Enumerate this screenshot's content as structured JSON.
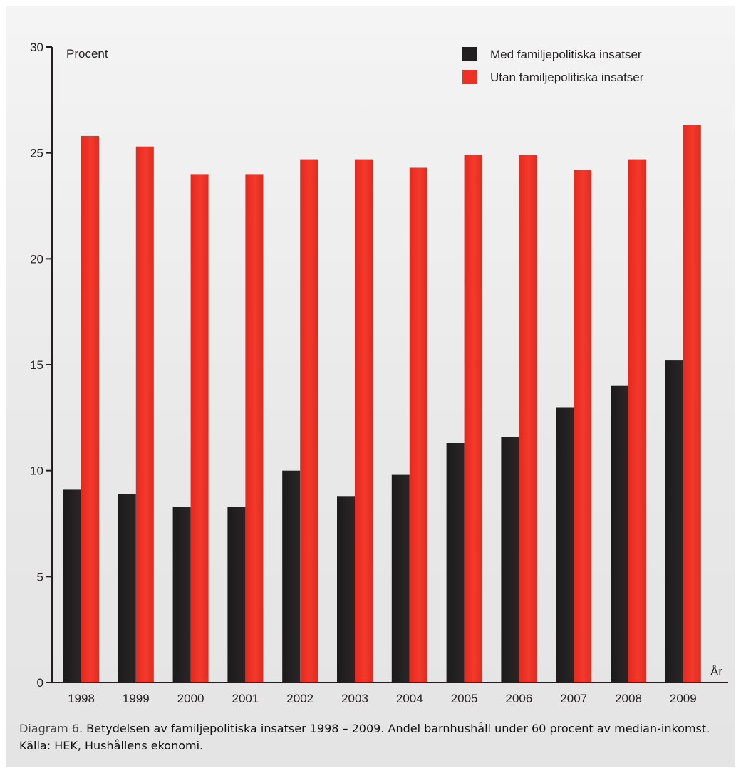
{
  "chart_data": {
    "type": "bar",
    "ylabel": "Procent",
    "xlabel": "År",
    "ylim": [
      0,
      30
    ],
    "yticks": [
      0,
      5,
      10,
      15,
      20,
      25,
      30
    ],
    "grid": false,
    "legend_position": "top-right",
    "categories": [
      "1998",
      "1999",
      "2000",
      "2001",
      "2002",
      "2003",
      "2004",
      "2005",
      "2006",
      "2007",
      "2008",
      "2009"
    ],
    "series": [
      {
        "name": "Med familjepolitiska insatser",
        "color": "#231f20",
        "values": [
          9.1,
          8.9,
          8.3,
          8.3,
          10.0,
          8.8,
          9.8,
          11.3,
          11.6,
          13.0,
          14.0,
          15.2
        ]
      },
      {
        "name": "Utan familjepolitiska insatser",
        "color": "#ee3124",
        "values": [
          25.8,
          25.3,
          24.0,
          24.0,
          24.7,
          24.7,
          24.3,
          24.9,
          24.9,
          24.2,
          24.7,
          26.3
        ]
      }
    ]
  },
  "caption": {
    "lead": "Diagram 6.",
    "text": "Betydelsen av familjepolitiska insatser 1998 – 2009. Andel barnhushåll under 60 procent av median-inkomst. Källa: HEK, Hushållens ekonomi."
  }
}
